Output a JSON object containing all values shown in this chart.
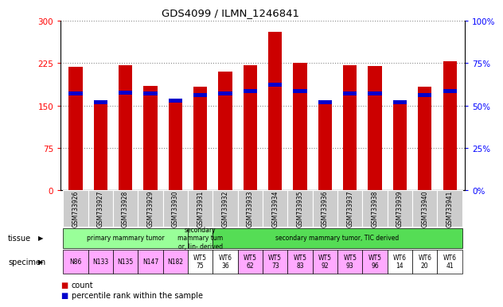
{
  "title": "GDS4099 / ILMN_1246841",
  "samples": [
    "GSM733926",
    "GSM733927",
    "GSM733928",
    "GSM733929",
    "GSM733930",
    "GSM733931",
    "GSM733932",
    "GSM733933",
    "GSM733934",
    "GSM733935",
    "GSM733936",
    "GSM733937",
    "GSM733938",
    "GSM733939",
    "GSM733940",
    "GSM733941"
  ],
  "counts": [
    219,
    152,
    222,
    185,
    155,
    183,
    210,
    222,
    280,
    226,
    152,
    222,
    220,
    152,
    183,
    228
  ],
  "percentile_marker_heights": [
    168,
    152,
    170,
    168,
    155,
    165,
    168,
    172,
    183,
    172,
    152,
    168,
    168,
    152,
    165,
    172
  ],
  "bar_color": "#cc0000",
  "percentile_color": "#0000cc",
  "left_ylim": [
    0,
    300
  ],
  "right_ylim": [
    0,
    100
  ],
  "left_yticks": [
    0,
    75,
    150,
    225,
    300
  ],
  "right_yticks": [
    0,
    25,
    50,
    75,
    100
  ],
  "right_yticklabels": [
    "0%",
    "25%",
    "50%",
    "75%",
    "100%"
  ],
  "tissue_groups": [
    {
      "text": "primary mammary tumor",
      "start": 0,
      "end": 4,
      "color": "#99ff99"
    },
    {
      "text": "secondary\nmammary tum\nor, lin- derived",
      "start": 5,
      "end": 5,
      "color": "#99ff99"
    },
    {
      "text": "secondary mammary tumor, TIC derived",
      "start": 6,
      "end": 15,
      "color": "#55dd55"
    }
  ],
  "specimen_labels": [
    {
      "text": "N86",
      "start": 0,
      "end": 0,
      "color": "#ffaaff"
    },
    {
      "text": "N133",
      "start": 1,
      "end": 1,
      "color": "#ffaaff"
    },
    {
      "text": "N135",
      "start": 2,
      "end": 2,
      "color": "#ffaaff"
    },
    {
      "text": "N147",
      "start": 3,
      "end": 3,
      "color": "#ffaaff"
    },
    {
      "text": "N182",
      "start": 4,
      "end": 4,
      "color": "#ffaaff"
    },
    {
      "text": "WT5\n75",
      "start": 5,
      "end": 5,
      "color": "#ffffff"
    },
    {
      "text": "WT6\n36",
      "start": 6,
      "end": 6,
      "color": "#ffffff"
    },
    {
      "text": "WT5\n62",
      "start": 7,
      "end": 7,
      "color": "#ffaaff"
    },
    {
      "text": "WT5\n73",
      "start": 8,
      "end": 8,
      "color": "#ffaaff"
    },
    {
      "text": "WT5\n83",
      "start": 9,
      "end": 9,
      "color": "#ffaaff"
    },
    {
      "text": "WT5\n92",
      "start": 10,
      "end": 10,
      "color": "#ffaaff"
    },
    {
      "text": "WT5\n93",
      "start": 11,
      "end": 11,
      "color": "#ffaaff"
    },
    {
      "text": "WT5\n96",
      "start": 12,
      "end": 12,
      "color": "#ffaaff"
    },
    {
      "text": "WT6\n14",
      "start": 13,
      "end": 13,
      "color": "#ffffff"
    },
    {
      "text": "WT6\n20",
      "start": 14,
      "end": 14,
      "color": "#ffffff"
    },
    {
      "text": "WT6\n41",
      "start": 15,
      "end": 15,
      "color": "#ffffff"
    }
  ],
  "background_color": "#ffffff",
  "grid_color": "#888888",
  "tick_label_bg": "#cccccc"
}
